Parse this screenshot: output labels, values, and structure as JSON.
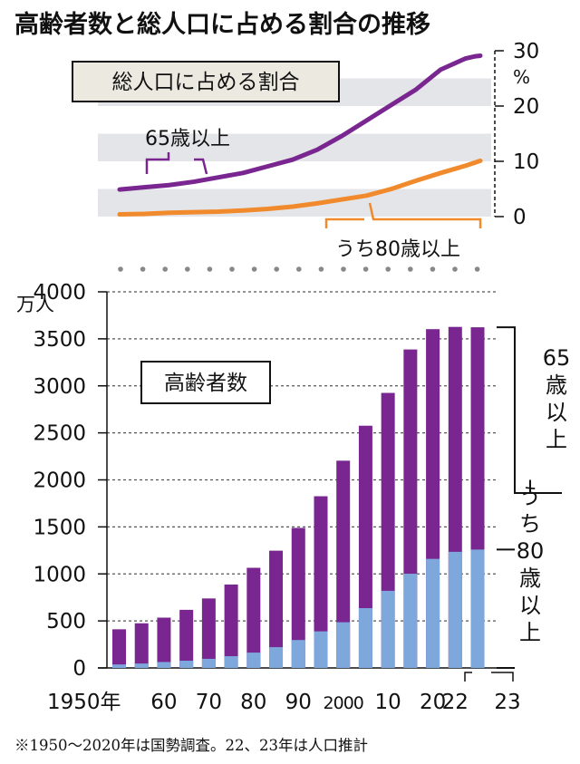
{
  "title": "高齢者数と総人口に占める割合の推移",
  "note": "※1950～2020年は国勢調査。22、23年は人口推計",
  "colors": {
    "purple": "#7a2690",
    "orange": "#f08a2c",
    "blue": "#7ea7dc",
    "band": "#e4e5e8",
    "boxfill": "#eceae0"
  },
  "chart_data": [
    {
      "type": "line",
      "title": "総人口に占める割合",
      "ylabel": "%",
      "ylim": [
        0,
        30
      ],
      "yticks": [
        "0",
        "10",
        "20",
        "30"
      ],
      "x": [
        1950,
        1955,
        1960,
        1965,
        1970,
        1975,
        1980,
        1985,
        1990,
        1995,
        2000,
        2005,
        2010,
        2015,
        2020,
        2022,
        2023
      ],
      "series": [
        {
          "name": "65歳以上",
          "values": [
            4.9,
            5.3,
            5.7,
            6.3,
            7.1,
            7.9,
            9.1,
            10.3,
            12.1,
            14.6,
            17.4,
            20.2,
            23.0,
            26.6,
            28.6,
            29.0,
            29.1
          ]
        },
        {
          "name": "うち80歳以上",
          "values": [
            0.4,
            0.5,
            0.7,
            0.8,
            0.9,
            1.1,
            1.4,
            1.8,
            2.4,
            3.1,
            3.8,
            5.0,
            6.5,
            7.9,
            9.2,
            9.8,
            10.1
          ]
        }
      ]
    },
    {
      "type": "bar",
      "title": "高齢者数",
      "ylabel": "万人",
      "ylim": [
        0,
        4000
      ],
      "yticks": [
        "0",
        "500",
        "1000",
        "1500",
        "2000",
        "2500",
        "3000",
        "3500",
        "4000"
      ],
      "categories": [
        "1950年",
        "55",
        "60",
        "65",
        "70",
        "75",
        "80",
        "85",
        "90",
        "95",
        "2000",
        "05",
        "10",
        "15",
        "20",
        "22",
        "23"
      ],
      "xtick_labels": [
        "1950年",
        "60",
        "70",
        "80",
        "90",
        "2000",
        "10",
        "20",
        "22",
        "23"
      ],
      "series": [
        {
          "name": "65歳以上",
          "values": [
            411,
            475,
            535,
            618,
            739,
            887,
            1065,
            1247,
            1489,
            1826,
            2204,
            2576,
            2925,
            3387,
            3603,
            3627,
            3623
          ]
        },
        {
          "name": "うち80歳以上",
          "values": [
            37,
            47,
            63,
            77,
            97,
            125,
            163,
            221,
            297,
            389,
            486,
            636,
            820,
            1002,
            1160,
            1235,
            1259
          ]
        }
      ],
      "bracket_labels": {
        "age65": "65歳以上",
        "age80": "うち80歳以上"
      }
    }
  ]
}
